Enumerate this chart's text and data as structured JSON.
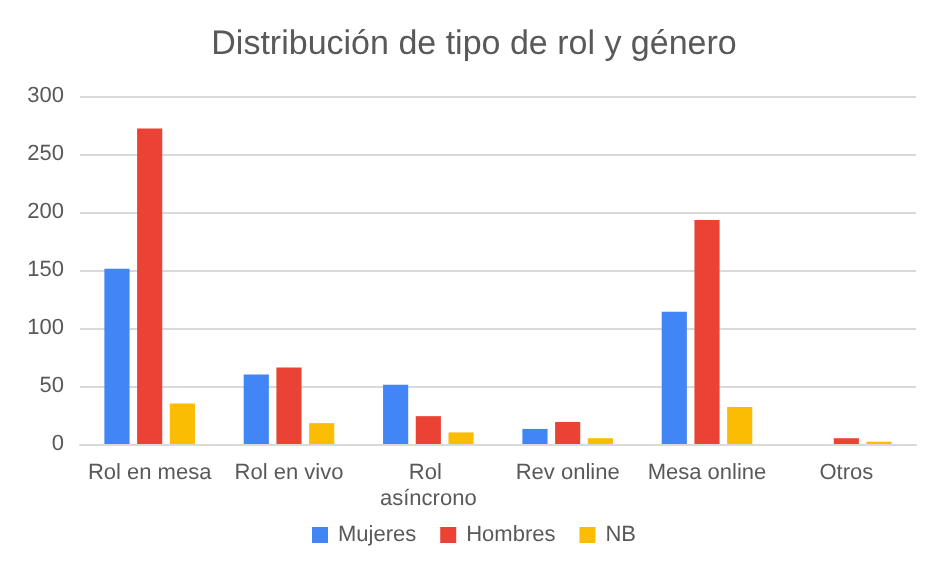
{
  "chart_data": {
    "type": "bar",
    "title": "Distribución de tipo de rol y género",
    "categories": [
      "Rol en mesa",
      "Rol en vivo",
      "Rol asíncrono",
      "Rev online",
      "Mesa online",
      "Otros"
    ],
    "series": [
      {
        "name": "Mujeres",
        "color": "#4285f4",
        "values": [
          151,
          60,
          51,
          13,
          114,
          0
        ]
      },
      {
        "name": "Hombres",
        "color": "#ea4335",
        "values": [
          272,
          66,
          24,
          19,
          193,
          5
        ]
      },
      {
        "name": "NB",
        "color": "#fbbc04",
        "values": [
          35,
          18,
          10,
          5,
          32,
          2
        ]
      }
    ],
    "ylim": [
      0,
      300
    ],
    "yticks": [
      0,
      50,
      100,
      150,
      200,
      250,
      300
    ],
    "grid": "y",
    "legend": "bottom"
  }
}
